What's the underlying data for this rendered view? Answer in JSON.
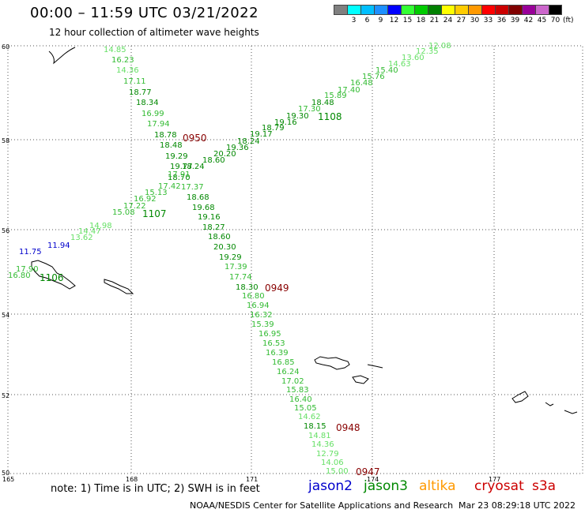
{
  "header": {
    "title": "00:00 – 11:59 UTC 03/21/2022",
    "subtitle": "12 hour collection of altimeter wave heights"
  },
  "scale": {
    "swatches": [
      {
        "color": "#808080",
        "label": ""
      },
      {
        "color": "#00ffff",
        "label": "3"
      },
      {
        "color": "#00bfff",
        "label": "6"
      },
      {
        "color": "#1e90ff",
        "label": "9"
      },
      {
        "color": "#0000ff",
        "label": "12"
      },
      {
        "color": "#33ff33",
        "label": "15"
      },
      {
        "color": "#00cc00",
        "label": "18"
      },
      {
        "color": "#008000",
        "label": "21"
      },
      {
        "color": "#ffff00",
        "label": "24"
      },
      {
        "color": "#ffcc00",
        "label": "27"
      },
      {
        "color": "#ff9900",
        "label": "30"
      },
      {
        "color": "#ff0000",
        "label": "33"
      },
      {
        "color": "#cc0000",
        "label": "36"
      },
      {
        "color": "#800000",
        "label": "39"
      },
      {
        "color": "#990099",
        "label": "42"
      },
      {
        "color": "#cc66cc",
        "label": "45"
      },
      {
        "color": "#000000",
        "label": "70"
      }
    ],
    "unit": "(ft)"
  },
  "map": {
    "lat_ticks": [
      "60",
      "58",
      "56",
      "54",
      "52",
      "50"
    ],
    "lon_ticks": [
      "165",
      "168",
      "171",
      "174",
      "177"
    ],
    "tracks": [
      {
        "id": "0950",
        "points": [
          {
            "v": "14.85",
            "c": "#66e066"
          },
          {
            "v": "16.23",
            "c": "#33bb33"
          },
          {
            "v": "14.36",
            "c": "#66e066"
          },
          {
            "v": "17.11",
            "c": "#33bb33"
          },
          {
            "v": "18.77",
            "c": "#008800"
          },
          {
            "v": "18.34",
            "c": "#008800"
          },
          {
            "v": "16.99",
            "c": "#33bb33"
          },
          {
            "v": "17.94",
            "c": "#33bb33"
          },
          {
            "v": "18.78",
            "c": "#008800"
          },
          {
            "v": "18.48",
            "c": "#008800"
          },
          {
            "v": "19.29",
            "c": "#008800"
          },
          {
            "v": "19.77",
            "c": "#008800"
          },
          {
            "v": "18.70",
            "c": "#008800"
          },
          {
            "v": "17.37",
            "c": "#33bb33"
          },
          {
            "v": "18.68",
            "c": "#008800"
          },
          {
            "v": "19.68",
            "c": "#008800"
          },
          {
            "v": "19.16",
            "c": "#008800"
          },
          {
            "v": "18.27",
            "c": "#008800"
          },
          {
            "v": "18.60",
            "c": "#008800"
          },
          {
            "v": "20.30",
            "c": "#008800"
          },
          {
            "v": "19.29",
            "c": "#008800"
          },
          {
            "v": "17.39",
            "c": "#33bb33"
          },
          {
            "v": "17.74",
            "c": "#33bb33"
          },
          {
            "v": "18.30",
            "c": "#008800"
          },
          {
            "v": "16.80",
            "c": "#33bb33"
          },
          {
            "v": "16.94",
            "c": "#33bb33"
          },
          {
            "v": "16.32",
            "c": "#33bb33"
          },
          {
            "v": "15.39",
            "c": "#33bb33"
          },
          {
            "v": "16.95",
            "c": "#33bb33"
          },
          {
            "v": "16.53",
            "c": "#33bb33"
          },
          {
            "v": "16.39",
            "c": "#33bb33"
          },
          {
            "v": "16.85",
            "c": "#33bb33"
          },
          {
            "v": "16.24",
            "c": "#33bb33"
          },
          {
            "v": "17.02",
            "c": "#33bb33"
          },
          {
            "v": "15.83",
            "c": "#33bb33"
          },
          {
            "v": "16.40",
            "c": "#33bb33"
          },
          {
            "v": "15.05",
            "c": "#33bb33"
          },
          {
            "v": "14.62",
            "c": "#66e066"
          },
          {
            "v": "18.15",
            "c": "#008800"
          },
          {
            "v": "14.81",
            "c": "#66e066"
          },
          {
            "v": "14.36",
            "c": "#66e066"
          },
          {
            "v": "12.79",
            "c": "#66e066"
          },
          {
            "v": "14.06",
            "c": "#66e066"
          },
          {
            "v": "15.00",
            "c": "#66e066"
          }
        ]
      },
      {
        "id": "1108",
        "points": [
          {
            "v": "16.80",
            "c": "#33bb33"
          },
          {
            "v": "17.90",
            "c": "#33bb33"
          },
          {
            "v": "11.75",
            "c": "#0000cc"
          },
          {
            "v": "11.94",
            "c": "#0000cc"
          },
          {
            "v": "13.62",
            "c": "#66e066"
          },
          {
            "v": "14.47",
            "c": "#66e066"
          },
          {
            "v": "14.98",
            "c": "#66e066"
          },
          {
            "v": "15.08",
            "c": "#33bb33"
          },
          {
            "v": "17.22",
            "c": "#33bb33"
          },
          {
            "v": "16.92",
            "c": "#33bb33"
          },
          {
            "v": "15.13",
            "c": "#33bb33"
          },
          {
            "v": "17.42",
            "c": "#33bb33"
          },
          {
            "v": "17.91",
            "c": "#33bb33"
          },
          {
            "v": "18.24",
            "c": "#008800"
          },
          {
            "v": "18.60",
            "c": "#008800"
          },
          {
            "v": "20.20",
            "c": "#008800"
          },
          {
            "v": "19.36",
            "c": "#008800"
          },
          {
            "v": "18.24",
            "c": "#008800"
          },
          {
            "v": "19.17",
            "c": "#008800"
          },
          {
            "v": "18.79",
            "c": "#008800"
          },
          {
            "v": "19.16",
            "c": "#008800"
          },
          {
            "v": "19.30",
            "c": "#008800"
          },
          {
            "v": "17.30",
            "c": "#33bb33"
          },
          {
            "v": "18.48",
            "c": "#008800"
          },
          {
            "v": "15.89",
            "c": "#33bb33"
          },
          {
            "v": "17.40",
            "c": "#33bb33"
          },
          {
            "v": "16.48",
            "c": "#33bb33"
          },
          {
            "v": "15.76",
            "c": "#33bb33"
          },
          {
            "v": "15.40",
            "c": "#33bb33"
          },
          {
            "v": "14.63",
            "c": "#66e066"
          },
          {
            "v": "13.60",
            "c": "#66e066"
          },
          {
            "v": "12.35",
            "c": "#66e066"
          },
          {
            "v": "12.08",
            "c": "#66e066"
          }
        ]
      }
    ],
    "pass_labels": [
      {
        "text": "0950",
        "color": "#880000"
      },
      {
        "text": "0949",
        "color": "#880000"
      },
      {
        "text": "0948",
        "color": "#880000"
      },
      {
        "text": "0947",
        "color": "#880000"
      },
      {
        "text": "1108",
        "color": "#008800"
      },
      {
        "text": "1107",
        "color": "#008800"
      },
      {
        "text": "1106",
        "color": "#008800"
      }
    ]
  },
  "footer": {
    "note": "note: 1) Time is in UTC; 2) SWH is in feet",
    "legend": [
      {
        "name": "jason2",
        "color": "#0000cc"
      },
      {
        "name": "jason3",
        "color": "#008800"
      },
      {
        "name": "altika",
        "color": "#ff9900"
      },
      {
        "name": "cryosat",
        "color": "#cc0000"
      },
      {
        "name": "s3a",
        "color": "#cc0000"
      }
    ],
    "credit": "NOAA/NESDIS Center for Satellite Applications and Research",
    "timestamp": "Mar 23 08:29:18 UTC 2022"
  }
}
